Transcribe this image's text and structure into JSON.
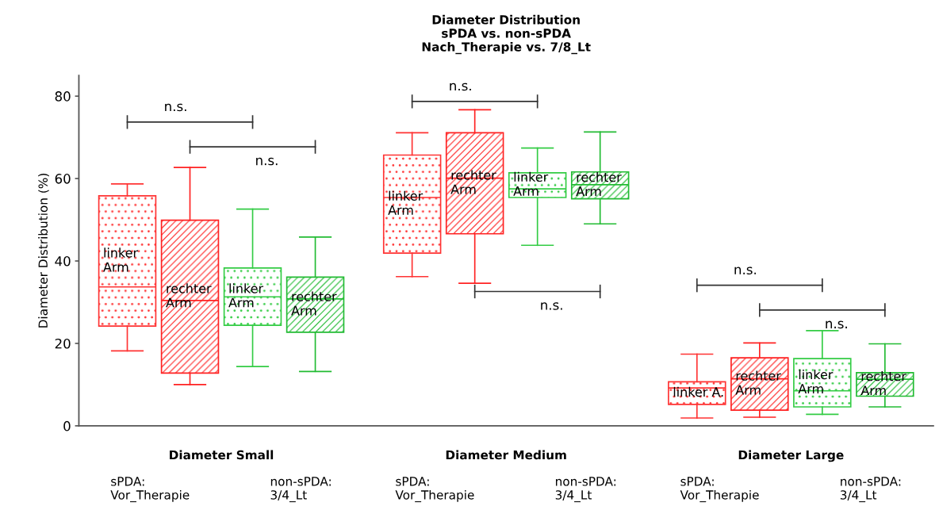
{
  "chart_data": {
    "type": "box",
    "title": "Diameter Distribution\nsPDA vs. non-sPDA\nNach_Therapie vs. 7/8_Lt",
    "ylabel": "Diameter Distribution (%)",
    "categories": [
      "Diameter Small",
      "Diameter Medium",
      "Diameter Large"
    ],
    "ylim": [
      0,
      85
    ],
    "yticks": [
      0,
      20,
      40,
      60,
      80
    ],
    "grid": false,
    "series": [
      {
        "color": "#ff3333",
        "value_labels": [
          "linker\nArm",
          "linker\nArm",
          "linker A."
        ],
        "boxes": [
          {
            "low": 18.2,
            "q1": 24.2,
            "median": 33.7,
            "q3": 55.8,
            "high": 58.7
          },
          {
            "low": 36.2,
            "q1": 41.9,
            "median": 55.4,
            "q3": 65.7,
            "high": 71.1
          },
          {
            "low": 1.9,
            "q1": 5.2,
            "median": 9.2,
            "q3": 10.7,
            "high": 17.4
          }
        ]
      },
      {
        "color": "#ff2222",
        "value_labels": [
          "rechter\nArm",
          "rechter\nArm",
          "rechter\nArm"
        ],
        "boxes": [
          {
            "low": 10.0,
            "q1": 12.8,
            "median": 30.4,
            "q3": 49.9,
            "high": 62.7
          },
          {
            "low": 34.6,
            "q1": 46.6,
            "median": 60.1,
            "q3": 71.1,
            "high": 76.7
          },
          {
            "low": 2.1,
            "q1": 3.8,
            "median": 11.4,
            "q3": 16.5,
            "high": 20.1
          }
        ]
      },
      {
        "color": "#33cc44",
        "value_labels": [
          "linker\nArm",
          "linker\nArm",
          "linker\nArm"
        ],
        "boxes": [
          {
            "low": 14.4,
            "q1": 24.4,
            "median": 31.3,
            "q3": 38.3,
            "high": 52.6
          },
          {
            "low": 43.8,
            "q1": 55.4,
            "median": 57.5,
            "q3": 61.4,
            "high": 67.4
          },
          {
            "low": 2.8,
            "q1": 4.6,
            "median": 8.5,
            "q3": 16.3,
            "high": 23.1
          }
        ]
      },
      {
        "color": "#22bb33",
        "value_labels": [
          "rechter\nArm",
          "rechter\nArm",
          "rechter\nArm"
        ],
        "boxes": [
          {
            "low": 13.2,
            "q1": 22.7,
            "median": 30.8,
            "q3": 36.1,
            "high": 45.8
          },
          {
            "low": 49.0,
            "q1": 55.1,
            "median": 58.5,
            "q3": 61.6,
            "high": 71.3
          },
          {
            "low": 4.6,
            "q1": 7.2,
            "median": 11.3,
            "q3": 12.9,
            "high": 19.9
          }
        ]
      }
    ],
    "annotations": [
      "n.s.",
      "n.s.",
      "n.s.",
      "n.s.",
      "n.s.",
      "n.s.",
      "sPDA:\nVor_Therapie",
      "non-sPDA:\n3/4_Lt",
      "sPDA:\nVor_Therapie",
      "non-sPDA:\n3/4_Lt",
      "sPDA:\nVor_Therapie",
      "non-sPDA:\n3/4_Lt"
    ]
  }
}
